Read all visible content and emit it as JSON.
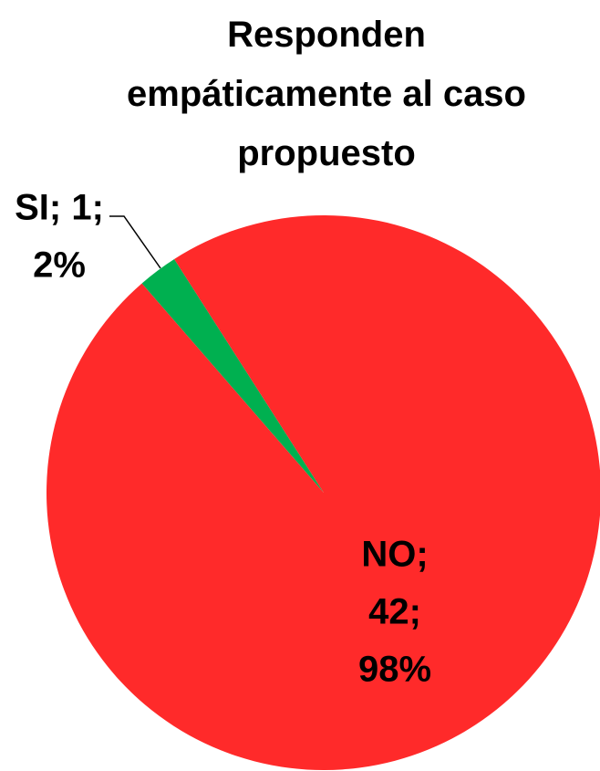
{
  "chart_data": {
    "type": "pie",
    "title": "Responden empáticamente al caso propuesto",
    "categories": [
      "SI",
      "NO"
    ],
    "values": [
      1,
      42
    ],
    "value_labels": [
      [
        "SI; 1;",
        "2%"
      ],
      [
        "NO;",
        "42;",
        "98%"
      ]
    ],
    "colors": [
      "#00b050",
      "#ff2a2a"
    ]
  }
}
